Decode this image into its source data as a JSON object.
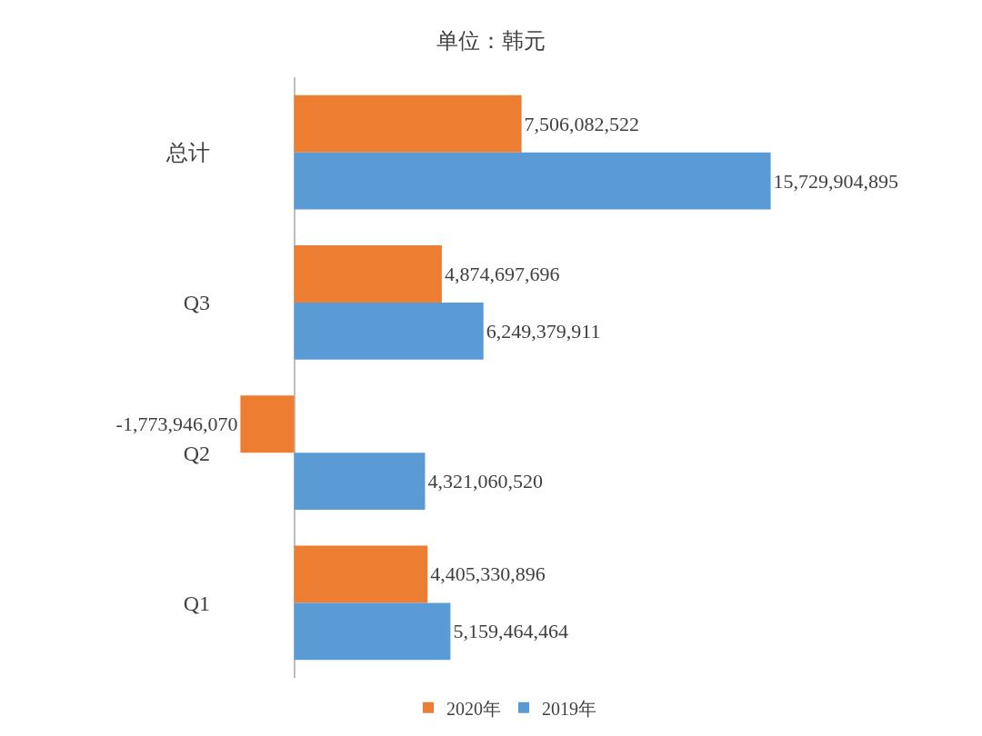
{
  "chart_data": {
    "type": "bar",
    "orientation": "horizontal",
    "title": "单位：韩元",
    "categories": [
      "总计",
      "Q3",
      "Q2",
      "Q1"
    ],
    "series": [
      {
        "name": "2020年",
        "color": "#ed7d31",
        "values": [
          7506082522,
          4874697696,
          -1773946070,
          4405330896
        ],
        "value_labels": [
          "7,506,082,522",
          "4,874,697,696",
          "-1,773,946,070",
          "4,405,330,896"
        ]
      },
      {
        "name": "2019年",
        "color": "#5b9bd5",
        "values": [
          15729904895,
          6249379911,
          4321060520,
          5159464464
        ],
        "value_labels": [
          "15,729,904,895",
          "6,249,379,911",
          "4,321,060,520",
          "5,159,464,464"
        ]
      }
    ],
    "legend": "bottom",
    "tick_labels": "y"
  }
}
